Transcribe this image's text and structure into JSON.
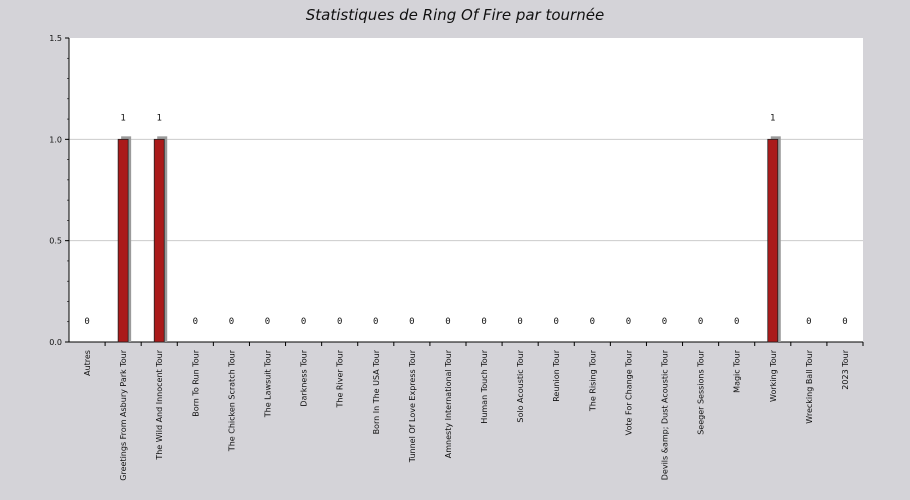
{
  "chart_data": {
    "type": "bar",
    "title": "Statistiques de Ring Of Fire par tournée",
    "xlabel": "",
    "ylabel": "",
    "ylim": [
      0,
      1.5
    ],
    "yticks": [
      "0.0",
      "0.5",
      "1.0",
      "1.5"
    ],
    "grid": true,
    "categories": [
      "Autres",
      "Greetings From Asbury Park Tour",
      "The Wild And Innocent Tour",
      "Born To Run Tour",
      "The Chicken Scratch Tour",
      "The Lawsuit Tour",
      "Darkness Tour",
      "The River Tour",
      "Born In The USA Tour",
      "Tunnel Of Love Express Tour",
      "Amnesty International Tour",
      "Human Touch Tour",
      "Solo Acoustic Tour",
      "Reunion Tour",
      "The Rising Tour",
      "Vote For Change Tour",
      "Devils &amp; Dust Acoustic Tour",
      "Seeger Sessions Tour",
      "Magic Tour",
      "Working Tour",
      "Wrecking Ball Tour",
      "2023 Tour"
    ],
    "values": [
      0,
      1,
      1,
      0,
      0,
      0,
      0,
      0,
      0,
      0,
      0,
      0,
      0,
      0,
      0,
      0,
      0,
      0,
      0,
      1,
      0,
      0
    ],
    "data_labels": [
      "0",
      "1",
      "1",
      "0",
      "0",
      "0",
      "0",
      "0",
      "0",
      "0",
      "0",
      "0",
      "0",
      "0",
      "0",
      "0",
      "0",
      "0",
      "0",
      "1",
      "0",
      "0"
    ],
    "colors": {
      "bar": "#aa1a1a",
      "shadow": "#9a9a9a",
      "plot_bg": "#ffffff",
      "page_bg": "#d4d3d8",
      "grid": "#cccccc"
    }
  }
}
